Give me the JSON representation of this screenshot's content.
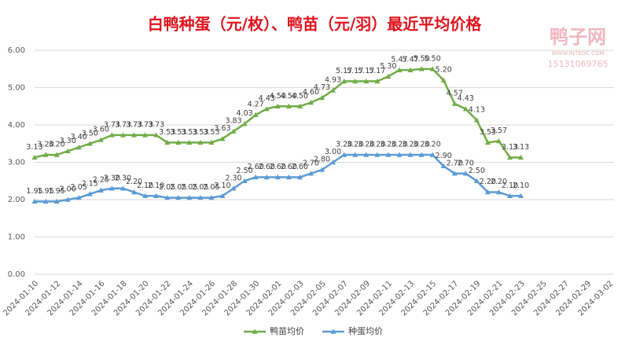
{
  "chart_data": {
    "type": "line",
    "title": "白鸭种蛋（元/枚）、鸭苗（元/羽）最近平均价格",
    "watermark": [
      "鸭子网",
      "WWW.INTEDC.COM",
      "15131069765"
    ],
    "categories": [
      "2024-01-10",
      null,
      "2024-01-12",
      null,
      "2024-01-14",
      null,
      "2024-01-16",
      null,
      "2024-01-18",
      null,
      "2024-01-20",
      null,
      "2024-01-22",
      null,
      "2024-01-24",
      null,
      "2024-01-26",
      null,
      "2024-01-28",
      null,
      "2024-01-30",
      null,
      "2024-02-01",
      null,
      "2024-02-03",
      null,
      "2024-02-05",
      null,
      "2024-02-07",
      null,
      "2024-02-09",
      null,
      "2024-02-11",
      null,
      "2024-02-13",
      null,
      "2024-02-15",
      null,
      "2024-02-17",
      null,
      "2024-02-19",
      null,
      "2024-02-21",
      null,
      "2024-02-23",
      null,
      "2024-02-25",
      null,
      "2024-02-27",
      null,
      "2024-02-29",
      null,
      "2024-03-02"
    ],
    "series": [
      {
        "name": "鸭苗均价",
        "color": "#70ad47",
        "values": [
          3.13,
          3.2,
          3.2,
          3.3,
          3.4,
          3.5,
          3.6,
          3.73,
          3.73,
          3.73,
          3.73,
          3.73,
          3.53,
          3.53,
          3.53,
          3.53,
          3.53,
          3.63,
          3.83,
          4.03,
          4.27,
          4.43,
          4.5,
          4.5,
          4.5,
          4.6,
          4.73,
          4.93,
          5.17,
          5.17,
          5.17,
          5.17,
          5.3,
          5.47,
          5.47,
          5.5,
          5.5,
          5.2,
          4.57,
          4.43,
          4.13,
          3.53,
          3.57,
          3.13,
          3.13,
          null,
          null,
          null,
          null,
          null,
          null,
          null,
          null
        ],
        "value_labels": [
          "3.13",
          "3.20",
          "3.20",
          "3.30",
          "3.40",
          "3.50",
          "3.60",
          "3.73",
          "3.73",
          "3.73",
          "3.73",
          "3.73",
          "3.53",
          "3.53",
          "3.53",
          "3.53",
          "3.53",
          "3.63",
          "3.83",
          "4.03",
          "4.27",
          "4.43",
          "4.50",
          "4.50",
          "4.50",
          "4.60",
          "4.73",
          "4.93",
          "5.17",
          "5.17",
          "5.17",
          "5.17",
          "5.30",
          "5.47",
          "5.47",
          "5.50",
          "5.50",
          "5.20",
          "4.57",
          "4.43",
          "4.13",
          "3.53",
          "3.57",
          "3.13",
          "3.13",
          null,
          null,
          null,
          null,
          null,
          null,
          null,
          null
        ]
      },
      {
        "name": "种蛋均价",
        "color": "#5b9bd5",
        "values": [
          1.95,
          1.95,
          1.95,
          2.0,
          2.05,
          2.15,
          2.25,
          2.3,
          2.3,
          2.2,
          2.1,
          2.1,
          2.05,
          2.05,
          2.05,
          2.05,
          2.05,
          2.1,
          2.3,
          2.5,
          2.6,
          2.6,
          2.6,
          2.6,
          2.6,
          2.7,
          2.8,
          3.0,
          3.2,
          3.2,
          3.2,
          3.2,
          3.2,
          3.2,
          3.2,
          3.2,
          3.2,
          2.9,
          2.7,
          2.7,
          2.5,
          2.2,
          2.2,
          2.1,
          2.1,
          null,
          null,
          null,
          null,
          null,
          null,
          null,
          null
        ],
        "value_labels": [
          "1.95",
          "1.95",
          "1.95",
          "2.00",
          "2.05",
          "2.15",
          "2.25",
          "2.30",
          "2.30",
          "2.20",
          "2.10",
          "2.10",
          "2.05",
          "2.05",
          "2.05",
          "2.05",
          "2.05",
          "2.10",
          "2.30",
          "2.50",
          "2.60",
          "2.60",
          "2.60",
          "2.60",
          "2.60",
          "2.70",
          "2.80",
          "3.00",
          "3.20",
          "3.20",
          "3.20",
          "3.20",
          "3.20",
          "3.20",
          "3.20",
          "3.20",
          "3.20",
          "2.90",
          "2.70",
          "2.70",
          "2.50",
          "2.20",
          "2.20",
          "2.10",
          "2.10",
          null,
          null,
          null,
          null,
          null,
          null,
          null,
          null
        ]
      }
    ],
    "ylim": [
      0,
      6
    ],
    "yticks": [
      {
        "value": 0,
        "label": "0.00"
      },
      {
        "value": 1,
        "label": "1.00"
      },
      {
        "value": 2,
        "label": "2.00"
      },
      {
        "value": 3,
        "label": "3.00"
      },
      {
        "value": 4,
        "label": "4.00"
      },
      {
        "value": 5,
        "label": "5.00"
      },
      {
        "value": 6,
        "label": "6.00"
      }
    ],
    "grid": true,
    "legend": "bottom"
  }
}
